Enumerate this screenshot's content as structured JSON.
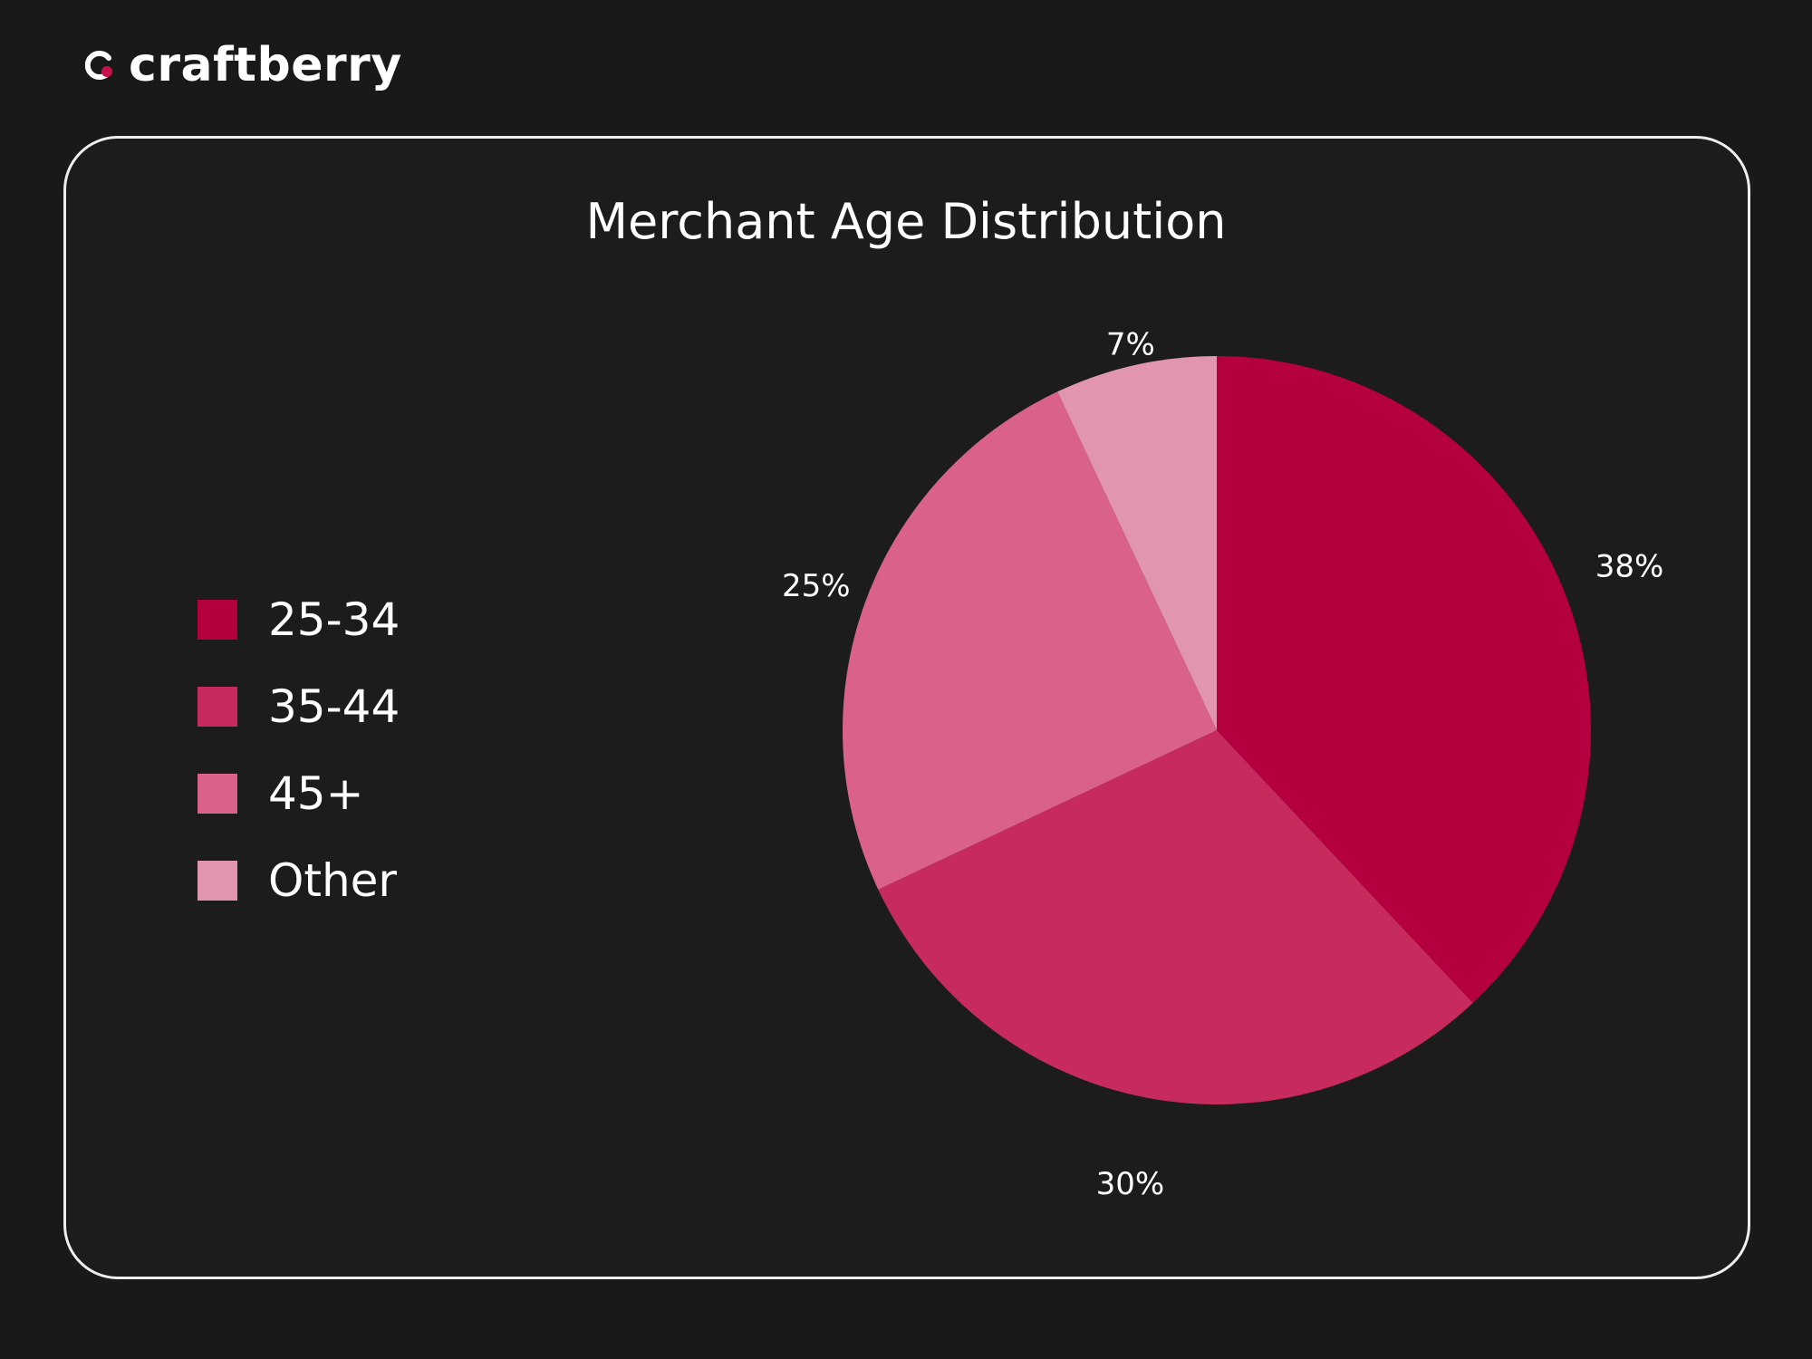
{
  "brand": {
    "name": "craftberry",
    "logo_icon": "craftberry-logo-icon",
    "accent": "#c8104a"
  },
  "chart_data": {
    "type": "pie",
    "title": "Merchant Age Distribution",
    "legend_position": "left",
    "start_angle": "top, clockwise",
    "slices": [
      {
        "label": "25-34",
        "value": 38,
        "display": "38%",
        "color": "#b5003f"
      },
      {
        "label": "35-44",
        "value": 30,
        "display": "30%",
        "color": "#c72a5d"
      },
      {
        "label": "45+",
        "value": 25,
        "display": "25%",
        "color": "#d9618a"
      },
      {
        "label": "Other",
        "value": 7,
        "display": "7%",
        "color": "#e295ae"
      }
    ]
  }
}
